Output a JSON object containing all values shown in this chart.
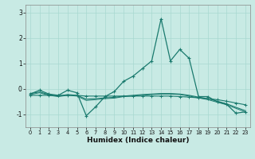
{
  "xlabel": "Humidex (Indice chaleur)",
  "x": [
    0,
    1,
    2,
    3,
    4,
    5,
    6,
    7,
    8,
    9,
    10,
    11,
    12,
    13,
    14,
    15,
    16,
    17,
    18,
    19,
    20,
    21,
    22,
    23
  ],
  "line_main": [
    -0.2,
    -0.05,
    -0.2,
    -0.25,
    -0.05,
    -0.15,
    -1.05,
    -0.7,
    -0.3,
    -0.1,
    0.3,
    0.5,
    0.8,
    1.1,
    2.75,
    1.1,
    1.55,
    1.2,
    -0.3,
    -0.3,
    -0.5,
    -0.6,
    -0.95,
    -0.9
  ],
  "line_smooth1": [
    -0.18,
    -0.12,
    -0.22,
    -0.28,
    -0.22,
    -0.25,
    -0.4,
    -0.38,
    -0.35,
    -0.33,
    -0.28,
    -0.25,
    -0.22,
    -0.2,
    -0.18,
    -0.18,
    -0.2,
    -0.25,
    -0.32,
    -0.38,
    -0.48,
    -0.58,
    -0.72,
    -0.85
  ],
  "line_smooth2": [
    -0.22,
    -0.15,
    -0.25,
    -0.3,
    -0.25,
    -0.28,
    -0.45,
    -0.42,
    -0.38,
    -0.36,
    -0.3,
    -0.28,
    -0.25,
    -0.22,
    -0.2,
    -0.2,
    -0.22,
    -0.28,
    -0.35,
    -0.42,
    -0.52,
    -0.62,
    -0.76,
    -0.9
  ],
  "line_flat": [
    -0.25,
    -0.25,
    -0.25,
    -0.25,
    -0.25,
    -0.25,
    -0.28,
    -0.28,
    -0.28,
    -0.28,
    -0.28,
    -0.28,
    -0.28,
    -0.28,
    -0.28,
    -0.28,
    -0.3,
    -0.32,
    -0.35,
    -0.38,
    -0.42,
    -0.48,
    -0.55,
    -0.62
  ],
  "bg_color": "#c8eae4",
  "line_color": "#1a7a6e",
  "grid_color": "#a8d8d0",
  "ylim": [
    -1.5,
    3.3
  ],
  "yticks": [
    -1,
    0,
    1,
    2,
    3
  ],
  "xticks": [
    0,
    1,
    2,
    3,
    4,
    5,
    6,
    7,
    8,
    9,
    10,
    11,
    12,
    13,
    14,
    15,
    16,
    17,
    18,
    19,
    20,
    21,
    22,
    23
  ]
}
